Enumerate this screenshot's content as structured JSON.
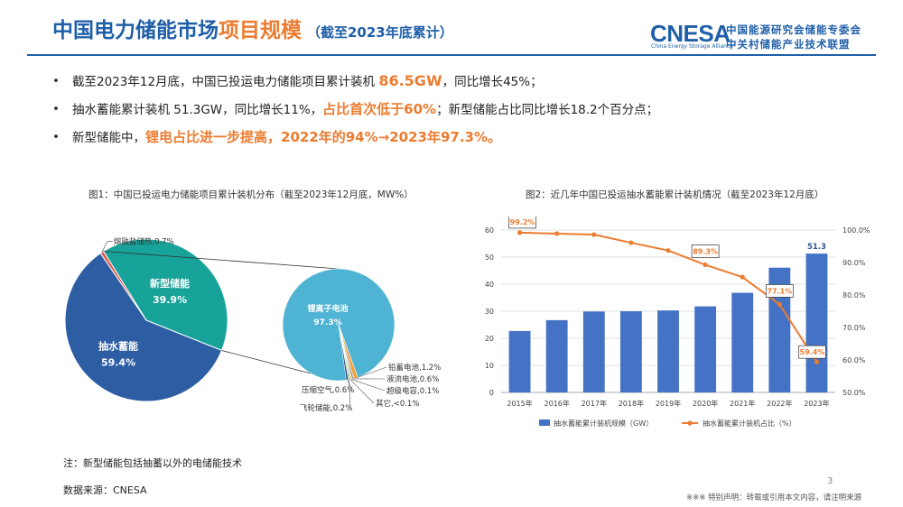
{
  "header": {
    "title_main": "中国电力储能市场",
    "title_highlight": "项目规模",
    "title_sub": "（截至2023年底累计）",
    "logo_text": "CNESA",
    "logo_en": "China Energy Storage Alliance",
    "logo_cn_line1": "中关村储能产业技术联盟",
    "logo_cn_line1_alt": "中国能源研究会储能专委会",
    "colors": {
      "primary": "#1f5fa8",
      "accent": "#ec7c30"
    }
  },
  "bullets": [
    {
      "pre": "截至2023年12月底，中国已投运电力储能项目累计装机 ",
      "emph": "86.5GW",
      "post": "，同比增长45%；"
    },
    {
      "pre": "抽水蓄能累计装机 51.3GW，同比增长11%，",
      "emph": "占比首次低于60%",
      "post": "；新型储能占比同比增长18.2个百分点；"
    },
    {
      "pre": "新型储能中，",
      "emph": "锂电占比进一步提高，2022年的94%→2023年97.3%。",
      "post": ""
    }
  ],
  "fig1": {
    "title": "图1：中国已投运电力储能项目累计装机分布（截至2023年12月底，MW%）"
  },
  "fig2": {
    "title": "图2：近几年中国已投运抽水蓄能累计装机情况（截至2023年12月底）"
  },
  "chart_data": [
    {
      "type": "pie",
      "title": "图1：中国已投运电力储能项目累计装机分布（截至2023年12月底，MW%）",
      "slices": [
        {
          "label": "抽水蓄能",
          "value": 59.4,
          "display": "59.4%",
          "color": "#2d5ea4"
        },
        {
          "label": "新型储能",
          "value": 39.9,
          "display": "39.9%",
          "color": "#18a39a"
        },
        {
          "label": "熔融盐储热",
          "value": 0.7,
          "display": "0.7%",
          "color": "#e0574f"
        }
      ],
      "breakdown_title": "新型储能",
      "breakdown": [
        {
          "label": "锂离子电池",
          "value": 97.3,
          "display": "97.3%",
          "color": "#4fb3d3"
        },
        {
          "label": "铅蓄电池",
          "value": 1.2,
          "display": "1.2%",
          "color": "#f0a23a"
        },
        {
          "label": "液流电池",
          "value": 0.6,
          "display": "0.6%",
          "color": "#9b9b9b"
        },
        {
          "label": "超级电容",
          "value": 0.1,
          "display": "0.1%",
          "color": "#ffd200"
        },
        {
          "label": "其它",
          "value": 0.1,
          "display": "<0.1%",
          "color": "#5b9bd5"
        },
        {
          "label": "飞轮储能",
          "value": 0.2,
          "display": "0.2%",
          "color": "#70ad47"
        },
        {
          "label": "压缩空气",
          "value": 0.6,
          "display": "0.6%",
          "color": "#264478"
        }
      ]
    },
    {
      "type": "bar",
      "title": "图2：近几年中国已投运抽水蓄能累计装机情况（截至2023年12月底）",
      "categories": [
        "2015年",
        "2016年",
        "2017年",
        "2018年",
        "2019年",
        "2020年",
        "2021年",
        "2022年",
        "2023年"
      ],
      "series": [
        {
          "name": "抽水蓄能累计装机规模（GW）",
          "type": "bar",
          "axis": "left",
          "color": "#4472c4",
          "values": [
            22.7,
            26.7,
            29.9,
            30.0,
            30.3,
            31.8,
            36.8,
            46.1,
            51.3
          ]
        },
        {
          "name": "抽水蓄能累计装机占比（%）",
          "type": "line",
          "axis": "right",
          "color": "#ec7c30",
          "values": [
            99.2,
            98.9,
            98.6,
            96.1,
            93.7,
            89.3,
            85.5,
            77.1,
            59.4
          ]
        }
      ],
      "bar_labels": [
        {
          "index": 8,
          "text": "51.3"
        }
      ],
      "line_labels": [
        {
          "index": 0,
          "text": "99.2%"
        },
        {
          "index": 5,
          "text": "89.3%"
        },
        {
          "index": 7,
          "text": "77.1%"
        },
        {
          "index": 8,
          "text": "59.4%"
        }
      ],
      "ylim_left": [
        0,
        60
      ],
      "yticks_left": [
        "0",
        "10",
        "20",
        "30",
        "40",
        "50",
        "60"
      ],
      "ylim_right": [
        50,
        100
      ],
      "yticks_right": [
        "50.0%",
        "60.0%",
        "70.0%",
        "80.0%",
        "90.0%",
        "100.0%"
      ],
      "legend": "bottom"
    }
  ],
  "footer": {
    "note": "注：新型储能包括抽蓄以外的电储能技术",
    "source": "数据来源：CNESA",
    "page": "3",
    "disclaimer": "※※※ 特别声明：转载或引用本文内容，请注明来源"
  }
}
